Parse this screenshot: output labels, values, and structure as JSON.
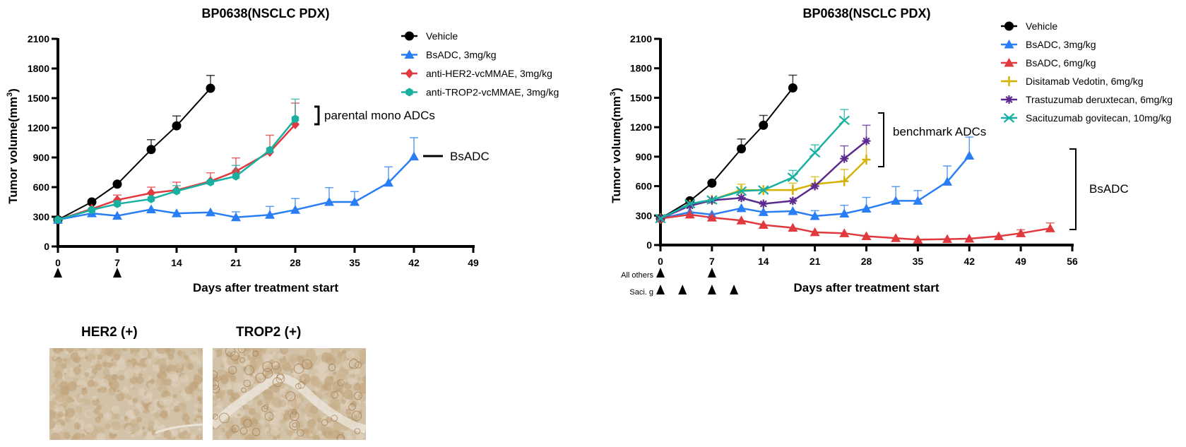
{
  "chart_data": [
    {
      "type": "line",
      "title": "BP0638(NSCLC PDX)",
      "xlabel": "Days after treatment start",
      "ylabel": "Tumor volume(mm3)",
      "xlim": [
        0,
        49
      ],
      "ylim": [
        0,
        2100
      ],
      "xticks": [
        "0",
        "7",
        "14",
        "21",
        "28",
        "35",
        "42",
        "49"
      ],
      "yticks": [
        "0",
        "300",
        "600",
        "900",
        "1200",
        "1500",
        "1800",
        "2100"
      ],
      "legend_position": "top-right",
      "dosing_days": [
        0,
        7
      ],
      "annotations": [
        {
          "text": "parental mono ADCs",
          "type": "bracket"
        },
        {
          "text": "BsADC",
          "type": "line"
        }
      ],
      "series": [
        {
          "name": "Vehicle",
          "color": "#000000",
          "marker": "circle",
          "x": [
            0,
            4,
            7,
            11,
            14,
            18
          ],
          "y": [
            270,
            450,
            630,
            980,
            1220,
            1600
          ],
          "err": [
            0,
            0,
            0,
            100,
            100,
            130
          ]
        },
        {
          "name": "BsADC, 3mg/kg",
          "color": "#2a7ef5",
          "marker": "triangle",
          "x": [
            0,
            4,
            7,
            11,
            14,
            18,
            21,
            25,
            28,
            32,
            35,
            39,
            42
          ],
          "y": [
            270,
            335,
            310,
            375,
            335,
            345,
            295,
            320,
            370,
            450,
            450,
            645,
            910
          ],
          "err": [
            0,
            0,
            0,
            0,
            0,
            0,
            55,
            85,
            115,
            145,
            105,
            160,
            190
          ]
        },
        {
          "name": "anti-HER2-vcMMAE, 3mg/kg",
          "color": "#e0393e",
          "marker": "diamond",
          "x": [
            0,
            4,
            7,
            11,
            14,
            18,
            21,
            25,
            28
          ],
          "y": [
            270,
            380,
            470,
            540,
            570,
            660,
            760,
            955,
            1235
          ],
          "err": [
            0,
            0,
            50,
            60,
            80,
            85,
            135,
            170,
            215
          ]
        },
        {
          "name": "anti-TROP2-vcMMAE, 3mg/kg",
          "color": "#18b0a0",
          "marker": "hexagon",
          "x": [
            0,
            4,
            7,
            11,
            14,
            18,
            21,
            25,
            28
          ],
          "y": [
            270,
            370,
            430,
            480,
            560,
            650,
            710,
            975,
            1290
          ],
          "err": [
            0,
            0,
            30,
            0,
            55,
            0,
            110,
            0,
            200
          ]
        }
      ]
    },
    {
      "type": "line",
      "title": "BP0638(NSCLC PDX)",
      "xlabel": "Days after treatment start",
      "ylabel": "Tumor volume(mm3)",
      "xlim": [
        0,
        56
      ],
      "ylim": [
        0,
        2100
      ],
      "xticks": [
        "0",
        "7",
        "14",
        "21",
        "28",
        "35",
        "42",
        "49",
        "56"
      ],
      "yticks": [
        "0",
        "300",
        "600",
        "900",
        "1200",
        "1500",
        "1800",
        "2100"
      ],
      "legend_position": "top-right",
      "dosing": [
        {
          "label": "All others",
          "days": [
            0,
            7
          ]
        },
        {
          "label": "Saci. g",
          "days": [
            0,
            3,
            7,
            10
          ]
        }
      ],
      "annotations": [
        {
          "text": "benchmark ADCs",
          "type": "bracket"
        },
        {
          "text": "BsADC",
          "type": "bracket"
        }
      ],
      "series": [
        {
          "name": "Vehicle",
          "color": "#000000",
          "marker": "circle",
          "x": [
            0,
            4,
            7,
            11,
            14,
            18
          ],
          "y": [
            270,
            450,
            630,
            980,
            1220,
            1600
          ],
          "err": [
            0,
            0,
            0,
            100,
            100,
            130
          ]
        },
        {
          "name": "BsADC, 3mg/kg",
          "color": "#2a7ef5",
          "marker": "triangle",
          "x": [
            0,
            4,
            7,
            11,
            14,
            18,
            21,
            25,
            28,
            32,
            35,
            39,
            42
          ],
          "y": [
            270,
            335,
            310,
            375,
            335,
            345,
            295,
            320,
            370,
            450,
            450,
            645,
            910
          ],
          "err": [
            0,
            0,
            0,
            0,
            0,
            0,
            55,
            85,
            115,
            145,
            105,
            160,
            190
          ]
        },
        {
          "name": "BsADC, 6mg/kg",
          "color": "#e0393e",
          "marker": "triangle",
          "x": [
            0,
            4,
            7,
            11,
            14,
            18,
            21,
            25,
            28,
            32,
            35,
            39,
            42,
            46,
            49,
            53
          ],
          "y": [
            270,
            310,
            280,
            250,
            205,
            175,
            130,
            120,
            90,
            70,
            55,
            60,
            65,
            90,
            120,
            170
          ],
          "err": [
            0,
            0,
            0,
            0,
            0,
            0,
            0,
            0,
            0,
            0,
            0,
            0,
            0,
            0,
            35,
            55
          ]
        },
        {
          "name": "Disitamab Vedotin, 6mg/kg",
          "color": "#d4b300",
          "marker": "plus",
          "x": [
            0,
            4,
            7,
            11,
            14,
            18,
            21,
            25,
            28
          ],
          "y": [
            270,
            410,
            460,
            560,
            560,
            560,
            620,
            650,
            870
          ],
          "err": [
            0,
            0,
            0,
            60,
            0,
            70,
            75,
            120,
            190
          ]
        },
        {
          "name": "Trastuzumab deruxtecan, 6mg/kg",
          "color": "#5b2a8e",
          "marker": "asterisk",
          "x": [
            0,
            4,
            7,
            11,
            14,
            18,
            21,
            25,
            28
          ],
          "y": [
            270,
            400,
            455,
            480,
            420,
            450,
            600,
            880,
            1060
          ],
          "err": [
            0,
            0,
            0,
            0,
            0,
            0,
            0,
            130,
            160
          ]
        },
        {
          "name": "Sacituzumab govitecan, 10mg/kg",
          "color": "#18b0a0",
          "marker": "x",
          "x": [
            0,
            4,
            7,
            11,
            14,
            18,
            21,
            25
          ],
          "y": [
            270,
            420,
            460,
            550,
            560,
            690,
            940,
            1270
          ],
          "err": [
            0,
            0,
            0,
            0,
            0,
            70,
            80,
            110
          ]
        }
      ]
    }
  ],
  "ihc": {
    "her2_label": "HER2 (+)",
    "trop2_label": "TROP2 (+)"
  }
}
